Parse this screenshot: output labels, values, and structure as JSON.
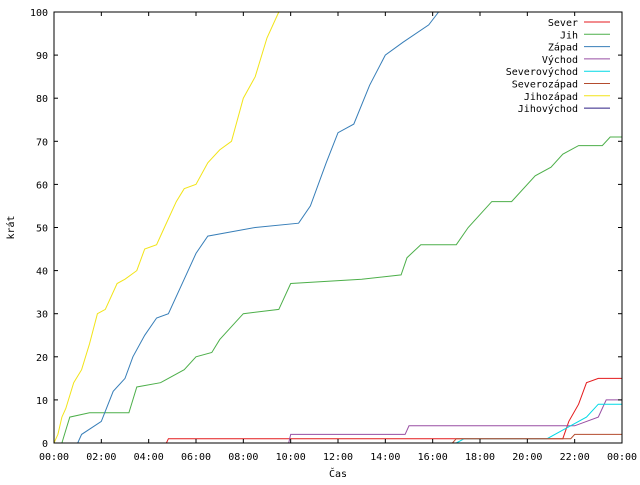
{
  "chart_data": {
    "type": "line",
    "title": "",
    "xlabel": "Čas",
    "ylabel": "krát",
    "xlim": [
      "00:00",
      "24:00"
    ],
    "ylim": [
      0,
      100
    ],
    "x_tick_labels": [
      "00:00",
      "02:00",
      "04:00",
      "06:00",
      "08:00",
      "10:00",
      "12:00",
      "14:00",
      "16:00",
      "18:00",
      "20:00",
      "22:00",
      "00:00"
    ],
    "y_tick_labels": [
      "0",
      "10",
      "20",
      "30",
      "40",
      "50",
      "60",
      "70",
      "80",
      "90",
      "100"
    ],
    "grid": false,
    "legend_position": "top-right",
    "series": [
      {
        "name": "Sever",
        "color": "#e41a1c",
        "points": [
          [
            "00:00",
            0
          ],
          [
            "04:45",
            0
          ],
          [
            "04:50",
            1
          ],
          [
            "21:30",
            1
          ],
          [
            "21:45",
            5
          ],
          [
            "22:10",
            9
          ],
          [
            "22:30",
            14
          ],
          [
            "23:00",
            15
          ],
          [
            "24:00",
            15
          ]
        ]
      },
      {
        "name": "Jih",
        "color": "#4daf4a",
        "points": [
          [
            "00:00",
            0
          ],
          [
            "00:20",
            0
          ],
          [
            "00:30",
            3
          ],
          [
            "00:40",
            6
          ],
          [
            "01:30",
            7
          ],
          [
            "03:10",
            7
          ],
          [
            "03:30",
            13
          ],
          [
            "04:30",
            14
          ],
          [
            "05:30",
            17
          ],
          [
            "06:00",
            20
          ],
          [
            "06:40",
            21
          ],
          [
            "07:00",
            24
          ],
          [
            "07:40",
            28
          ],
          [
            "08:00",
            30
          ],
          [
            "09:30",
            31
          ],
          [
            "10:00",
            37
          ],
          [
            "13:00",
            38
          ],
          [
            "14:40",
            39
          ],
          [
            "14:55",
            43
          ],
          [
            "15:30",
            46
          ],
          [
            "17:00",
            46
          ],
          [
            "17:30",
            50
          ],
          [
            "18:30",
            56
          ],
          [
            "19:20",
            56
          ],
          [
            "20:20",
            62
          ],
          [
            "21:00",
            64
          ],
          [
            "21:30",
            67
          ],
          [
            "22:10",
            69
          ],
          [
            "23:10",
            69
          ],
          [
            "23:30",
            71
          ],
          [
            "24:00",
            71
          ]
        ]
      },
      {
        "name": "Západ",
        "color": "#377eb8",
        "points": [
          [
            "00:00",
            0
          ],
          [
            "01:00",
            0
          ],
          [
            "01:10",
            2
          ],
          [
            "02:00",
            5
          ],
          [
            "02:30",
            12
          ],
          [
            "03:00",
            15
          ],
          [
            "03:20",
            20
          ],
          [
            "03:50",
            25
          ],
          [
            "04:20",
            29
          ],
          [
            "04:50",
            30
          ],
          [
            "05:30",
            38
          ],
          [
            "06:00",
            44
          ],
          [
            "06:30",
            48
          ],
          [
            "08:30",
            50
          ],
          [
            "10:20",
            51
          ],
          [
            "10:50",
            55
          ],
          [
            "11:30",
            65
          ],
          [
            "12:00",
            72
          ],
          [
            "12:40",
            74
          ],
          [
            "13:20",
            83
          ],
          [
            "14:00",
            90
          ],
          [
            "14:45",
            93
          ],
          [
            "15:50",
            97
          ],
          [
            "16:15",
            100
          ]
        ]
      },
      {
        "name": "Východ",
        "color": "#984ea3",
        "points": [
          [
            "00:00",
            0
          ],
          [
            "09:55",
            0
          ],
          [
            "10:00",
            2
          ],
          [
            "14:50",
            2
          ],
          [
            "15:00",
            4
          ],
          [
            "22:00",
            4
          ],
          [
            "23:00",
            6
          ],
          [
            "23:20",
            10
          ],
          [
            "24:00",
            10
          ]
        ]
      },
      {
        "name": "Severovýchod",
        "color": "#00d9e6",
        "points": [
          [
            "00:00",
            0
          ],
          [
            "17:00",
            0
          ],
          [
            "17:20",
            1
          ],
          [
            "20:50",
            1
          ],
          [
            "21:30",
            3
          ],
          [
            "22:30",
            6
          ],
          [
            "23:00",
            9
          ],
          [
            "24:00",
            9
          ]
        ]
      },
      {
        "name": "Severozápad",
        "color": "#b44c2e",
        "points": [
          [
            "00:00",
            0
          ],
          [
            "16:50",
            0
          ],
          [
            "17:00",
            1
          ],
          [
            "21:50",
            1
          ],
          [
            "22:00",
            2
          ],
          [
            "24:00",
            2
          ]
        ]
      },
      {
        "name": "Jihozápad",
        "color": "#f2e418",
        "points": [
          [
            "00:00",
            0
          ],
          [
            "00:10",
            2
          ],
          [
            "00:20",
            6
          ],
          [
            "00:30",
            8
          ],
          [
            "00:50",
            14
          ],
          [
            "01:10",
            17
          ],
          [
            "01:30",
            23
          ],
          [
            "01:50",
            30
          ],
          [
            "02:10",
            31
          ],
          [
            "02:40",
            37
          ],
          [
            "03:00",
            38
          ],
          [
            "03:30",
            40
          ],
          [
            "03:50",
            45
          ],
          [
            "04:20",
            46
          ],
          [
            "04:40",
            50
          ],
          [
            "05:10",
            56
          ],
          [
            "05:30",
            59
          ],
          [
            "06:00",
            60
          ],
          [
            "06:30",
            65
          ],
          [
            "07:00",
            68
          ],
          [
            "07:30",
            70
          ],
          [
            "08:00",
            80
          ],
          [
            "08:30",
            85
          ],
          [
            "09:00",
            94
          ],
          [
            "09:30",
            100
          ]
        ]
      },
      {
        "name": "Jihovýchod",
        "color": "#2c1f84",
        "points": [
          [
            "00:00",
            0
          ],
          [
            "24:00",
            0
          ]
        ]
      }
    ]
  }
}
